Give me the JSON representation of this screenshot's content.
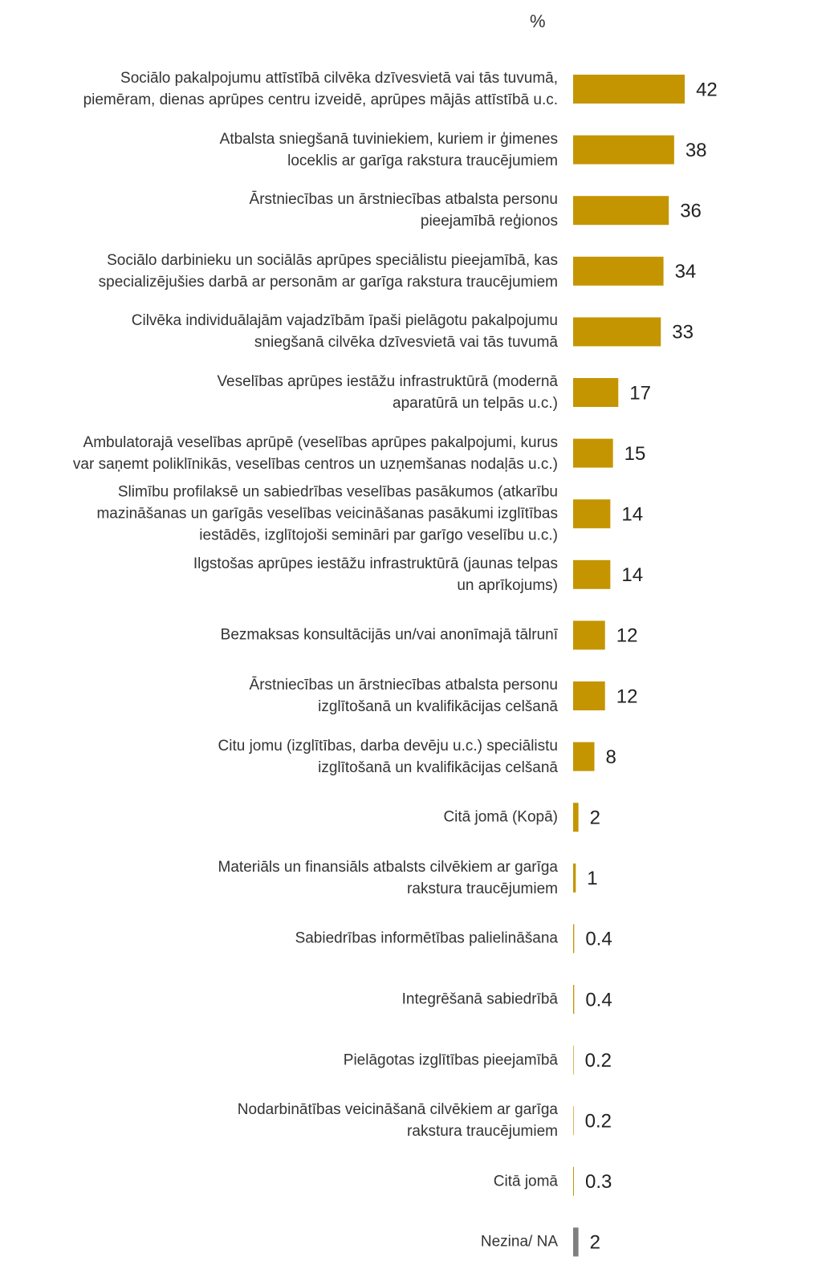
{
  "chart_data": {
    "type": "bar",
    "orientation": "horizontal",
    "unit_label": "%",
    "categories": [
      "Sociālo pakalpojumu attīstībā cilvēka dzīvesvietā vai tās tuvumā,\npiemēram, dienas aprūpes centru izveidē, aprūpes mājās attīstībā u.c.",
      "Atbalsta sniegšanā tuviniekiem, kuriem ir ģimenes\nloceklis ar garīga rakstura traucējumiem",
      "Ārstniecības un ārstniecības atbalsta personu\npieejamībā reģionos",
      "Sociālo darbinieku un sociālās aprūpes speciālistu pieejamībā, kas\nspecializējušies darbā ar personām ar garīga rakstura traucējumiem",
      "Cilvēka individuālajām vajadzībām īpaši pielāgotu pakalpojumu\nsniegšanā cilvēka dzīvesvietā vai tās tuvumā",
      "Veselības aprūpes iestāžu infrastruktūrā (modernā\naparatūrā un telpās u.c.)",
      "Ambulatorajā veselības aprūpē (veselības aprūpes pakalpojumi, kurus\nvar saņemt poliklīnikās, veselības centros un uzņemšanas nodaļās u.c.)",
      "Slimību profilaksē un sabiedrības veselības pasākumos (atkarību\nmazināšanas un garīgās veselības veicināšanas pasākumi izglītības\niestādēs, izglītojoši semināri par garīgo veselību u.c.)",
      "Ilgstošas aprūpes iestāžu infrastruktūrā (jaunas telpas\nun aprīkojums)",
      "Bezmaksas konsultācijās un/vai anonīmajā tālrunī",
      "Ārstniecības un ārstniecības atbalsta personu\nizglītošanā un kvalifikācijas celšanā",
      "Citu jomu (izglītības, darba devēju u.c.) speciālistu\nizglītošanā un kvalifikācijas celšanā",
      "Citā jomā (Kopā)",
      "Materiāls un finansiāls atbalsts cilvēkiem ar garīga\nrakstura traucējumiem",
      "Sabiedrības informētības palielināšana",
      "Integrēšanā sabiedrībā",
      "Pielāgotas izglītības pieejamībā",
      "Nodarbinātības veicināšanā cilvēkiem ar garīga\nrakstura traucējumiem",
      "Citā jomā",
      "Nezina/ NA"
    ],
    "values": [
      42,
      38,
      36,
      34,
      33,
      17,
      15,
      14,
      14,
      12,
      12,
      8,
      2,
      1,
      0.4,
      0.4,
      0.2,
      0.2,
      0.3,
      2
    ],
    "colors": [
      "#c49500",
      "#c49500",
      "#c49500",
      "#c49500",
      "#c49500",
      "#c49500",
      "#c49500",
      "#c49500",
      "#c49500",
      "#c49500",
      "#c49500",
      "#c49500",
      "#c49500",
      "#c49500",
      "#c49500",
      "#c49500",
      "#c49500",
      "#c49500",
      "#c49500",
      "#7f7f7f"
    ],
    "xlim": [
      0,
      90
    ]
  }
}
